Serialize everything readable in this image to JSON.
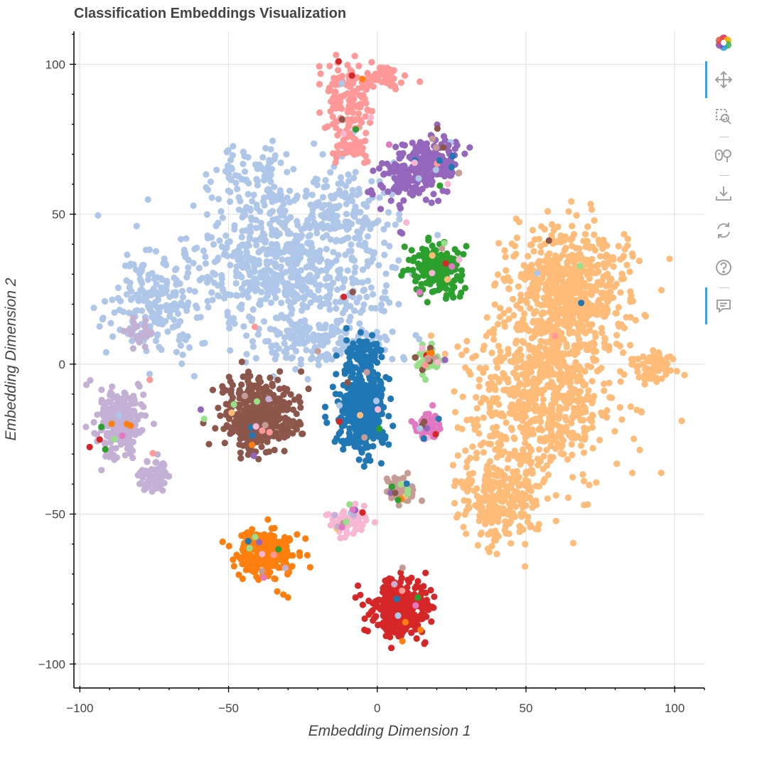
{
  "chart_data": {
    "type": "scatter",
    "title": "Classification Embeddings Visualization",
    "xlabel": "Embedding Dimension 1",
    "ylabel": "Embedding Dimension 2",
    "xlim": [
      -102,
      110
    ],
    "ylim": [
      -108,
      111
    ],
    "x_ticks": [
      -100,
      -50,
      0,
      50,
      100
    ],
    "y_ticks": [
      -100,
      -50,
      0,
      50,
      100
    ],
    "x_tick_labels": [
      "−100",
      "−50",
      "0",
      "50",
      "100"
    ],
    "y_tick_labels": [
      "−100",
      "−50",
      "0",
      "50",
      "100"
    ],
    "grid": true,
    "legend": "none",
    "series": [
      {
        "color": "#aec7e8",
        "clusters": [
          {
            "cx": -30,
            "cy": 32,
            "sx": 16,
            "sy": 12,
            "n": 650
          },
          {
            "cx": -75,
            "cy": 20,
            "sx": 7,
            "sy": 8,
            "n": 200
          },
          {
            "cx": -40,
            "cy": 62,
            "sx": 6,
            "sy": 6,
            "n": 90
          },
          {
            "cx": -10,
            "cy": 55,
            "sx": 8,
            "sy": 8,
            "n": 110
          },
          {
            "cx": -20,
            "cy": 8,
            "sx": 12,
            "sy": 5,
            "n": 150
          }
        ]
      },
      {
        "color": "#ff9896",
        "clusters": [
          {
            "cx": -10,
            "cy": 88,
            "sx": 4,
            "sy": 7,
            "n": 140
          },
          {
            "cx": 1,
            "cy": 96,
            "sx": 4,
            "sy": 2,
            "n": 50
          },
          {
            "cx": -8,
            "cy": 71,
            "sx": 3,
            "sy": 2,
            "n": 35
          }
        ]
      },
      {
        "color": "#9467bd",
        "clusters": [
          {
            "cx": 17,
            "cy": 68,
            "sx": 5,
            "sy": 4,
            "n": 170
          },
          {
            "cx": 10,
            "cy": 60,
            "sx": 6,
            "sy": 4,
            "n": 90
          }
        ]
      },
      {
        "color": "#2ca02c",
        "clusters": [
          {
            "cx": 20,
            "cy": 32,
            "sx": 4,
            "sy": 4,
            "n": 180
          }
        ]
      },
      {
        "color": "#ffbb78",
        "clusters": [
          {
            "cx": 65,
            "cy": 25,
            "sx": 10,
            "sy": 10,
            "n": 600
          },
          {
            "cx": 55,
            "cy": -10,
            "sx": 12,
            "sy": 14,
            "n": 700
          },
          {
            "cx": 42,
            "cy": -45,
            "sx": 7,
            "sy": 8,
            "n": 260
          },
          {
            "cx": 92,
            "cy": 0,
            "sx": 4,
            "sy": 3,
            "n": 70
          }
        ]
      },
      {
        "color": "#8c564b",
        "clusters": [
          {
            "cx": -40,
            "cy": -17,
            "sx": 6,
            "sy": 6,
            "n": 420
          }
        ]
      },
      {
        "color": "#1f77b4",
        "clusters": [
          {
            "cx": -5,
            "cy": -15,
            "sx": 4,
            "sy": 7,
            "n": 420
          },
          {
            "cx": -5,
            "cy": 3,
            "sx": 3,
            "sy": 3,
            "n": 80
          }
        ]
      },
      {
        "color": "#98df8a",
        "clusters": [
          {
            "cx": 17,
            "cy": 2,
            "sx": 2,
            "sy": 2,
            "n": 60
          }
        ]
      },
      {
        "color": "#e377c2",
        "clusters": [
          {
            "cx": 17,
            "cy": -21,
            "sx": 2,
            "sy": 2,
            "n": 65
          }
        ]
      },
      {
        "color": "#c49c94",
        "clusters": [
          {
            "cx": 8,
            "cy": -42,
            "sx": 2.5,
            "sy": 2,
            "n": 70
          }
        ]
      },
      {
        "color": "#f7b6d2",
        "clusters": [
          {
            "cx": -10,
            "cy": -52,
            "sx": 3,
            "sy": 2,
            "n": 60
          }
        ]
      },
      {
        "color": "#c5b0d5",
        "clusters": [
          {
            "cx": -87,
            "cy": -20,
            "sx": 4,
            "sy": 6,
            "n": 200
          },
          {
            "cx": -75,
            "cy": -37,
            "sx": 3,
            "sy": 3,
            "n": 70
          },
          {
            "cx": -80,
            "cy": 10,
            "sx": 3,
            "sy": 2,
            "n": 25
          }
        ]
      },
      {
        "color": "#ff7f0e",
        "clusters": [
          {
            "cx": -37,
            "cy": -63,
            "sx": 5,
            "sy": 4,
            "n": 260
          }
        ]
      },
      {
        "color": "#d62728",
        "clusters": [
          {
            "cx": 7,
            "cy": -81,
            "sx": 5,
            "sy": 5,
            "n": 300
          }
        ]
      }
    ]
  },
  "toolbar": {
    "items": [
      {
        "name": "bokeh-logo-icon",
        "interactable": false
      },
      {
        "name": "pan-tool-icon",
        "interactable": true,
        "active": true
      },
      {
        "name": "box-zoom-tool-icon",
        "interactable": true,
        "active": false
      },
      {
        "name": "wheel-zoom-tool-icon",
        "interactable": true,
        "active": false
      },
      {
        "name": "save-tool-icon",
        "interactable": true,
        "active": false
      },
      {
        "name": "reset-tool-icon",
        "interactable": true,
        "active": false
      },
      {
        "name": "help-tool-icon",
        "interactable": true,
        "active": false
      },
      {
        "name": "hover-tool-icon",
        "interactable": true,
        "active": true
      }
    ]
  }
}
